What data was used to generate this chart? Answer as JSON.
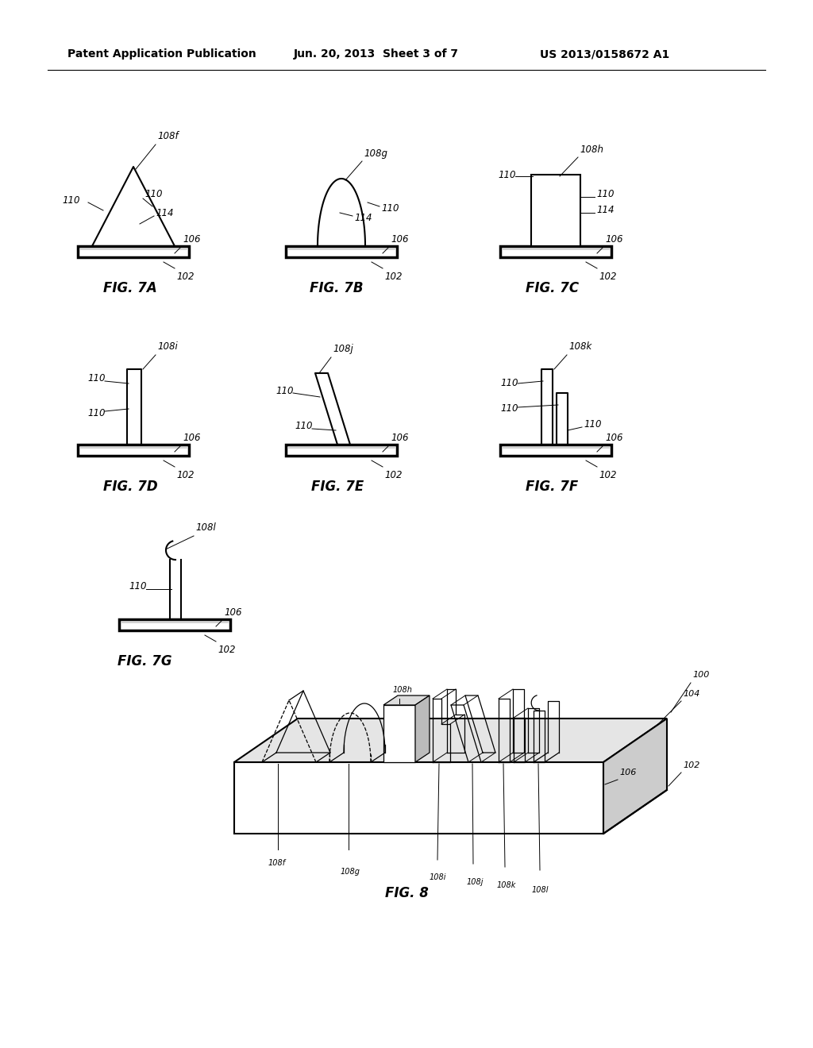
{
  "bg_color": "#ffffff",
  "header_left": "Patent Application Publication",
  "header_center": "Jun. 20, 2013  Sheet 3 of 7",
  "header_right": "US 2013/0158672 A1",
  "line_color": "#000000",
  "lw": 1.5,
  "lw_thick": 2.5,
  "fs_label": 8.5,
  "fs_fig": 12
}
